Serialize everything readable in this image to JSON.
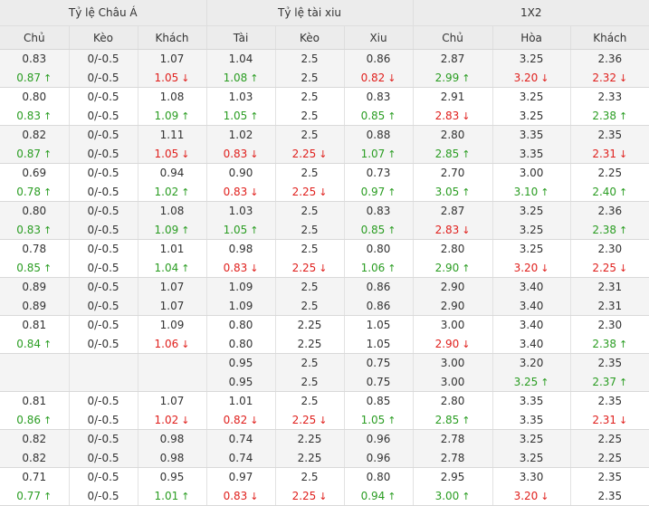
{
  "headers": {
    "groups": [
      "Tỷ lệ Châu Á",
      "Tỷ lệ tài xiu",
      "1X2"
    ],
    "columns": [
      "Chủ",
      "Kèo",
      "Khách",
      "Tài",
      "Kèo",
      "Xiu",
      "Chủ",
      "Hòa",
      "Khách"
    ]
  },
  "colors": {
    "up": "#2a9d22",
    "down": "#e0201d",
    "header_bg": "#ececec",
    "alt_row_bg": "#f4f4f4"
  },
  "icons": {
    "up": "arrow-up-icon",
    "down": "arrow-down-icon"
  },
  "rows": [
    [
      [
        [
          "0.83",
          ""
        ],
        [
          "0.87",
          "up"
        ]
      ],
      [
        [
          "0/-0.5",
          ""
        ],
        [
          "0/-0.5",
          ""
        ]
      ],
      [
        [
          "1.07",
          ""
        ],
        [
          "1.05",
          "down"
        ]
      ],
      [
        [
          "1.04",
          ""
        ],
        [
          "1.08",
          "up"
        ]
      ],
      [
        [
          "2.5",
          ""
        ],
        [
          "2.5",
          ""
        ]
      ],
      [
        [
          "0.86",
          ""
        ],
        [
          "0.82",
          "down"
        ]
      ],
      [
        [
          "2.87",
          ""
        ],
        [
          "2.99",
          "up"
        ]
      ],
      [
        [
          "3.25",
          ""
        ],
        [
          "3.20",
          "down"
        ]
      ],
      [
        [
          "2.36",
          ""
        ],
        [
          "2.32",
          "down"
        ]
      ]
    ],
    [
      [
        [
          "0.80",
          ""
        ],
        [
          "0.83",
          "up"
        ]
      ],
      [
        [
          "0/-0.5",
          ""
        ],
        [
          "0/-0.5",
          ""
        ]
      ],
      [
        [
          "1.08",
          ""
        ],
        [
          "1.09",
          "up"
        ]
      ],
      [
        [
          "1.03",
          ""
        ],
        [
          "1.05",
          "up"
        ]
      ],
      [
        [
          "2.5",
          ""
        ],
        [
          "2.5",
          ""
        ]
      ],
      [
        [
          "0.83",
          ""
        ],
        [
          "0.85",
          "up"
        ]
      ],
      [
        [
          "2.91",
          ""
        ],
        [
          "2.83",
          "down"
        ]
      ],
      [
        [
          "3.25",
          ""
        ],
        [
          "3.25",
          ""
        ]
      ],
      [
        [
          "2.33",
          ""
        ],
        [
          "2.38",
          "up"
        ]
      ]
    ],
    [
      [
        [
          "0.82",
          ""
        ],
        [
          "0.87",
          "up"
        ]
      ],
      [
        [
          "0/-0.5",
          ""
        ],
        [
          "0/-0.5",
          ""
        ]
      ],
      [
        [
          "1.11",
          ""
        ],
        [
          "1.05",
          "down"
        ]
      ],
      [
        [
          "1.02",
          ""
        ],
        [
          "0.83",
          "down"
        ]
      ],
      [
        [
          "2.5",
          ""
        ],
        [
          "2.25",
          "down"
        ]
      ],
      [
        [
          "0.88",
          ""
        ],
        [
          "1.07",
          "up"
        ]
      ],
      [
        [
          "2.80",
          ""
        ],
        [
          "2.85",
          "up"
        ]
      ],
      [
        [
          "3.35",
          ""
        ],
        [
          "3.35",
          ""
        ]
      ],
      [
        [
          "2.35",
          ""
        ],
        [
          "2.31",
          "down"
        ]
      ]
    ],
    [
      [
        [
          "0.69",
          ""
        ],
        [
          "0.78",
          "up"
        ]
      ],
      [
        [
          "0/-0.5",
          ""
        ],
        [
          "0/-0.5",
          ""
        ]
      ],
      [
        [
          "0.94",
          ""
        ],
        [
          "1.02",
          "up"
        ]
      ],
      [
        [
          "0.90",
          ""
        ],
        [
          "0.83",
          "down"
        ]
      ],
      [
        [
          "2.5",
          ""
        ],
        [
          "2.25",
          "down"
        ]
      ],
      [
        [
          "0.73",
          ""
        ],
        [
          "0.97",
          "up"
        ]
      ],
      [
        [
          "2.70",
          ""
        ],
        [
          "3.05",
          "up"
        ]
      ],
      [
        [
          "3.00",
          ""
        ],
        [
          "3.10",
          "up"
        ]
      ],
      [
        [
          "2.25",
          ""
        ],
        [
          "2.40",
          "up"
        ]
      ]
    ],
    [
      [
        [
          "0.80",
          ""
        ],
        [
          "0.83",
          "up"
        ]
      ],
      [
        [
          "0/-0.5",
          ""
        ],
        [
          "0/-0.5",
          ""
        ]
      ],
      [
        [
          "1.08",
          ""
        ],
        [
          "1.09",
          "up"
        ]
      ],
      [
        [
          "1.03",
          ""
        ],
        [
          "1.05",
          "up"
        ]
      ],
      [
        [
          "2.5",
          ""
        ],
        [
          "2.5",
          ""
        ]
      ],
      [
        [
          "0.83",
          ""
        ],
        [
          "0.85",
          "up"
        ]
      ],
      [
        [
          "2.87",
          ""
        ],
        [
          "2.83",
          "down"
        ]
      ],
      [
        [
          "3.25",
          ""
        ],
        [
          "3.25",
          ""
        ]
      ],
      [
        [
          "2.36",
          ""
        ],
        [
          "2.38",
          "up"
        ]
      ]
    ],
    [
      [
        [
          "0.78",
          ""
        ],
        [
          "0.85",
          "up"
        ]
      ],
      [
        [
          "0/-0.5",
          ""
        ],
        [
          "0/-0.5",
          ""
        ]
      ],
      [
        [
          "1.01",
          ""
        ],
        [
          "1.04",
          "up"
        ]
      ],
      [
        [
          "0.98",
          ""
        ],
        [
          "0.83",
          "down"
        ]
      ],
      [
        [
          "2.5",
          ""
        ],
        [
          "2.25",
          "down"
        ]
      ],
      [
        [
          "0.80",
          ""
        ],
        [
          "1.06",
          "up"
        ]
      ],
      [
        [
          "2.80",
          ""
        ],
        [
          "2.90",
          "up"
        ]
      ],
      [
        [
          "3.25",
          ""
        ],
        [
          "3.20",
          "down"
        ]
      ],
      [
        [
          "2.30",
          ""
        ],
        [
          "2.25",
          "down"
        ]
      ]
    ],
    [
      [
        [
          "0.89",
          ""
        ],
        [
          "0.89",
          ""
        ]
      ],
      [
        [
          "0/-0.5",
          ""
        ],
        [
          "0/-0.5",
          ""
        ]
      ],
      [
        [
          "1.07",
          ""
        ],
        [
          "1.07",
          ""
        ]
      ],
      [
        [
          "1.09",
          ""
        ],
        [
          "1.09",
          ""
        ]
      ],
      [
        [
          "2.5",
          ""
        ],
        [
          "2.5",
          ""
        ]
      ],
      [
        [
          "0.86",
          ""
        ],
        [
          "0.86",
          ""
        ]
      ],
      [
        [
          "2.90",
          ""
        ],
        [
          "2.90",
          ""
        ]
      ],
      [
        [
          "3.40",
          ""
        ],
        [
          "3.40",
          ""
        ]
      ],
      [
        [
          "2.31",
          ""
        ],
        [
          "2.31",
          ""
        ]
      ]
    ],
    [
      [
        [
          "0.81",
          ""
        ],
        [
          "0.84",
          "up"
        ]
      ],
      [
        [
          "0/-0.5",
          ""
        ],
        [
          "0/-0.5",
          ""
        ]
      ],
      [
        [
          "1.09",
          ""
        ],
        [
          "1.06",
          "down"
        ]
      ],
      [
        [
          "0.80",
          ""
        ],
        [
          "0.80",
          ""
        ]
      ],
      [
        [
          "2.25",
          ""
        ],
        [
          "2.25",
          ""
        ]
      ],
      [
        [
          "1.05",
          ""
        ],
        [
          "1.05",
          ""
        ]
      ],
      [
        [
          "3.00",
          ""
        ],
        [
          "2.90",
          "down"
        ]
      ],
      [
        [
          "3.40",
          ""
        ],
        [
          "3.40",
          ""
        ]
      ],
      [
        [
          "2.30",
          ""
        ],
        [
          "2.38",
          "up"
        ]
      ]
    ],
    [
      [
        [
          "",
          ""
        ],
        [
          "",
          ""
        ]
      ],
      [
        [
          "",
          ""
        ],
        [
          "",
          ""
        ]
      ],
      [
        [
          "",
          ""
        ],
        [
          "",
          ""
        ]
      ],
      [
        [
          "0.95",
          ""
        ],
        [
          "0.95",
          ""
        ]
      ],
      [
        [
          "2.5",
          ""
        ],
        [
          "2.5",
          ""
        ]
      ],
      [
        [
          "0.75",
          ""
        ],
        [
          "0.75",
          ""
        ]
      ],
      [
        [
          "3.00",
          ""
        ],
        [
          "3.00",
          ""
        ]
      ],
      [
        [
          "3.20",
          ""
        ],
        [
          "3.25",
          "up"
        ]
      ],
      [
        [
          "2.35",
          ""
        ],
        [
          "2.37",
          "up"
        ]
      ]
    ],
    [
      [
        [
          "0.81",
          ""
        ],
        [
          "0.86",
          "up"
        ]
      ],
      [
        [
          "0/-0.5",
          ""
        ],
        [
          "0/-0.5",
          ""
        ]
      ],
      [
        [
          "1.07",
          ""
        ],
        [
          "1.02",
          "down"
        ]
      ],
      [
        [
          "1.01",
          ""
        ],
        [
          "0.82",
          "down"
        ]
      ],
      [
        [
          "2.5",
          ""
        ],
        [
          "2.25",
          "down"
        ]
      ],
      [
        [
          "0.85",
          ""
        ],
        [
          "1.05",
          "up"
        ]
      ],
      [
        [
          "2.80",
          ""
        ],
        [
          "2.85",
          "up"
        ]
      ],
      [
        [
          "3.35",
          ""
        ],
        [
          "3.35",
          ""
        ]
      ],
      [
        [
          "2.35",
          ""
        ],
        [
          "2.31",
          "down"
        ]
      ]
    ],
    [
      [
        [
          "0.82",
          ""
        ],
        [
          "0.82",
          ""
        ]
      ],
      [
        [
          "0/-0.5",
          ""
        ],
        [
          "0/-0.5",
          ""
        ]
      ],
      [
        [
          "0.98",
          ""
        ],
        [
          "0.98",
          ""
        ]
      ],
      [
        [
          "0.74",
          ""
        ],
        [
          "0.74",
          ""
        ]
      ],
      [
        [
          "2.25",
          ""
        ],
        [
          "2.25",
          ""
        ]
      ],
      [
        [
          "0.96",
          ""
        ],
        [
          "0.96",
          ""
        ]
      ],
      [
        [
          "2.78",
          ""
        ],
        [
          "2.78",
          ""
        ]
      ],
      [
        [
          "3.25",
          ""
        ],
        [
          "3.25",
          ""
        ]
      ],
      [
        [
          "2.25",
          ""
        ],
        [
          "2.25",
          ""
        ]
      ]
    ],
    [
      [
        [
          "0.71",
          ""
        ],
        [
          "0.77",
          "up"
        ]
      ],
      [
        [
          "0/-0.5",
          ""
        ],
        [
          "0/-0.5",
          ""
        ]
      ],
      [
        [
          "0.95",
          ""
        ],
        [
          "1.01",
          "up"
        ]
      ],
      [
        [
          "0.97",
          ""
        ],
        [
          "0.83",
          "down"
        ]
      ],
      [
        [
          "2.5",
          ""
        ],
        [
          "2.25",
          "down"
        ]
      ],
      [
        [
          "0.80",
          ""
        ],
        [
          "0.94",
          "up"
        ]
      ],
      [
        [
          "2.95",
          ""
        ],
        [
          "3.00",
          "up"
        ]
      ],
      [
        [
          "3.30",
          ""
        ],
        [
          "3.20",
          "down"
        ]
      ],
      [
        [
          "2.35",
          ""
        ],
        [
          "2.35",
          ""
        ]
      ]
    ]
  ]
}
